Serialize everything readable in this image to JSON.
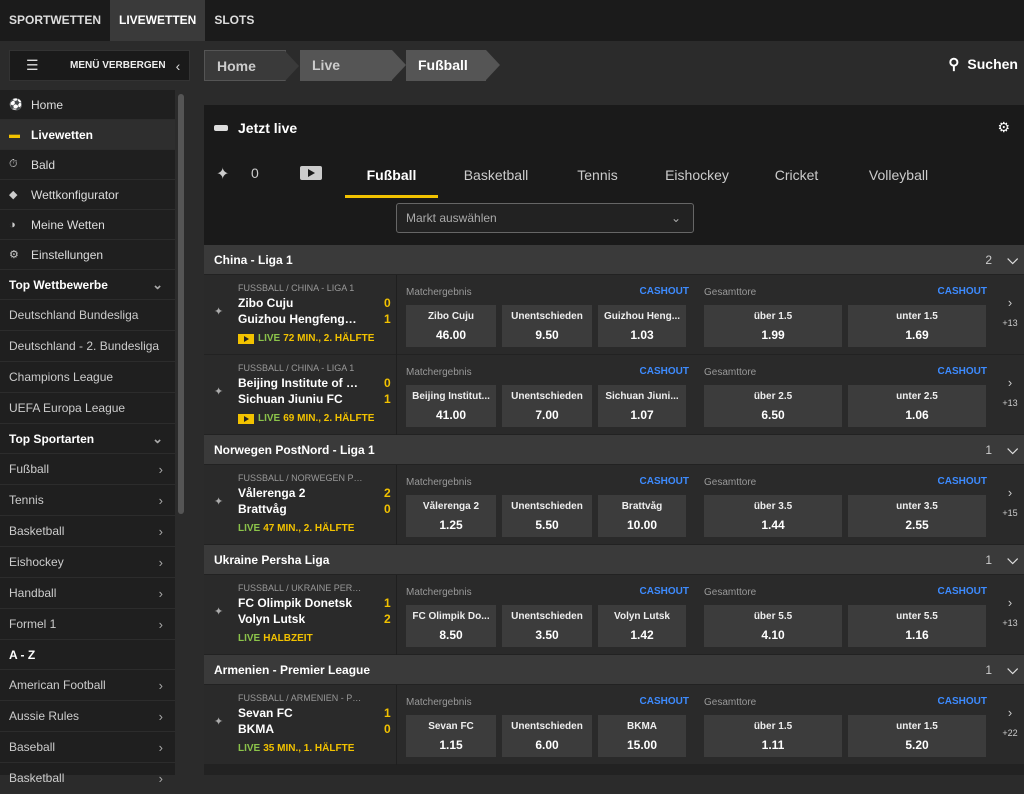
{
  "topnav": [
    "SPORTWETTEN",
    "LIVEWETTEN",
    "SLOTS"
  ],
  "menu_toggle": "MENÜ VERBERGEN",
  "breadcrumbs": [
    "Home",
    "Live",
    "Fußball"
  ],
  "search": "Suchen",
  "sidebar": {
    "items": [
      {
        "label": "Home",
        "icon": "soccer-ball-icon"
      },
      {
        "label": "Livewetten",
        "icon": "live-icon"
      },
      {
        "label": "Bald",
        "icon": "stopwatch-icon"
      },
      {
        "label": "Wettkonfigurator",
        "icon": "configurator-icon"
      },
      {
        "label": "Meine Wetten",
        "icon": "my-bets-icon"
      },
      {
        "label": "Einstellungen",
        "icon": "gear-icon"
      }
    ],
    "top_wettbewerbe": "Top Wettbewerbe",
    "competitions": [
      "Deutschland Bundesliga",
      "Deutschland - 2. Bundesliga",
      "Champions League",
      "UEFA Europa League"
    ],
    "top_sportarten": "Top Sportarten",
    "sports": [
      "Fußball",
      "Tennis",
      "Basketball",
      "Eishockey",
      "Handball",
      "Formel 1"
    ],
    "az": "A - Z",
    "az_items": [
      "American Football",
      "Aussie Rules",
      "Baseball",
      "Basketball"
    ]
  },
  "live": {
    "title": "Jetzt live",
    "pin_count": "0",
    "tabs": [
      "Fußball",
      "Basketball",
      "Tennis",
      "Eishockey",
      "Cricket",
      "Volleyball"
    ],
    "market_placeholder": "Markt auswählen"
  },
  "labels": {
    "matchergebnis": "Matchergebnis",
    "gesamttore": "Gesamttore",
    "cashout": "CASHOUT"
  },
  "leagues": [
    {
      "name": "China - Liga 1",
      "count": "2",
      "matches": [
        {
          "cat": "FUSSBALL / CHINA - LIGA 1",
          "home": "Zibo Cuju",
          "away": "Guizhou Hengfeng Z...",
          "hs": "0",
          "as": "1",
          "live": "LIVE",
          "min": "72 MIN., 2. HÄLFTE",
          "tv": true,
          "odds": [
            {
              "n": "Zibo Cuju",
              "v": "46.00"
            },
            {
              "n": "Unentschieden",
              "v": "9.50"
            },
            {
              "n": "Guizhou Heng...",
              "v": "1.03"
            }
          ],
          "totals": [
            {
              "n": "über 1.5",
              "v": "1.99"
            },
            {
              "n": "unter 1.5",
              "v": "1.69"
            }
          ],
          "more": "+13"
        },
        {
          "cat": "FUSSBALL / CHINA - LIGA 1",
          "home": "Beijing Institute of T...",
          "away": "Sichuan Jiuniu FC",
          "hs": "0",
          "as": "1",
          "live": "LIVE",
          "min": "69 MIN., 2. HÄLFTE",
          "tv": true,
          "odds": [
            {
              "n": "Beijing Institut...",
              "v": "41.00"
            },
            {
              "n": "Unentschieden",
              "v": "7.00"
            },
            {
              "n": "Sichuan Jiuni...",
              "v": "1.07"
            }
          ],
          "totals": [
            {
              "n": "über 2.5",
              "v": "6.50"
            },
            {
              "n": "unter 2.5",
              "v": "1.06"
            }
          ],
          "more": "+13"
        }
      ]
    },
    {
      "name": "Norwegen PostNord - Liga 1",
      "count": "1",
      "matches": [
        {
          "cat": "FUSSBALL / NORWEGEN POS...",
          "home": "Vålerenga 2",
          "away": "Brattvåg",
          "hs": "2",
          "as": "0",
          "live": "LIVE",
          "min": "47 MIN., 2. HÄLFTE",
          "tv": false,
          "odds": [
            {
              "n": "Vålerenga 2",
              "v": "1.25"
            },
            {
              "n": "Unentschieden",
              "v": "5.50"
            },
            {
              "n": "Brattvåg",
              "v": "10.00"
            }
          ],
          "totals": [
            {
              "n": "über 3.5",
              "v": "1.44"
            },
            {
              "n": "unter 3.5",
              "v": "2.55"
            }
          ],
          "more": "+15"
        }
      ]
    },
    {
      "name": "Ukraine Persha Liga",
      "count": "1",
      "matches": [
        {
          "cat": "FUSSBALL / UKRAINE PERSH...",
          "home": "FC Olimpik Donetsk",
          "away": "Volyn Lutsk",
          "hs": "1",
          "as": "2",
          "live": "LIVE",
          "min": "HALBZEIT",
          "tv": false,
          "odds": [
            {
              "n": "FC Olimpik Do...",
              "v": "8.50"
            },
            {
              "n": "Unentschieden",
              "v": "3.50"
            },
            {
              "n": "Volyn Lutsk",
              "v": "1.42"
            }
          ],
          "totals": [
            {
              "n": "über 5.5",
              "v": "4.10"
            },
            {
              "n": "unter 5.5",
              "v": "1.16"
            }
          ],
          "more": "+13"
        }
      ]
    },
    {
      "name": "Armenien - Premier League",
      "count": "1",
      "matches": [
        {
          "cat": "FUSSBALL / ARMENIEN - PRE...",
          "home": "Sevan FC",
          "away": "BKMA",
          "hs": "1",
          "as": "0",
          "live": "LIVE",
          "min": "35 MIN., 1. HÄLFTE",
          "tv": false,
          "odds": [
            {
              "n": "Sevan FC",
              "v": "1.15"
            },
            {
              "n": "Unentschieden",
              "v": "6.00"
            },
            {
              "n": "BKMA",
              "v": "15.00"
            }
          ],
          "totals": [
            {
              "n": "über 1.5",
              "v": "1.11"
            },
            {
              "n": "unter 1.5",
              "v": "5.20"
            }
          ],
          "more": "+22"
        }
      ]
    }
  ]
}
